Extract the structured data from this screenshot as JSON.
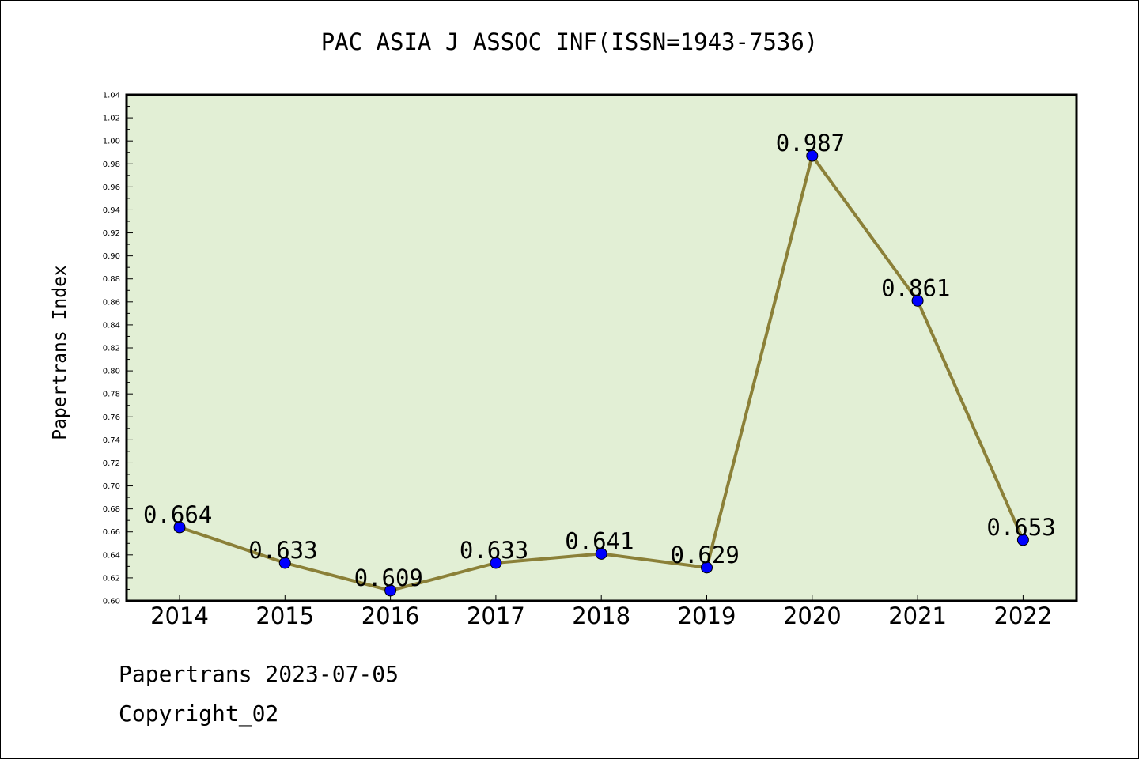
{
  "chart_data": {
    "type": "line",
    "title": "PAC ASIA J ASSOC INF(ISSN=1943-7536)",
    "ylabel": "Papertrans Index",
    "xlabel": "",
    "categories": [
      "2014",
      "2015",
      "2016",
      "2017",
      "2018",
      "2019",
      "2020",
      "2021",
      "2022"
    ],
    "series": [
      {
        "values": [
          0.664,
          0.633,
          0.609,
          0.633,
          0.641,
          0.629,
          0.987,
          0.861,
          0.653
        ]
      }
    ],
    "data_labels": [
      "0.664",
      "0.633",
      "0.609",
      "0.633",
      "0.641",
      "0.629",
      "0.987",
      "0.861",
      "0.653"
    ],
    "ylim": [
      0.6,
      1.04
    ],
    "yticks": [
      "0.60",
      "0.62",
      "0.64",
      "0.66",
      "0.68",
      "0.70",
      "0.72",
      "0.74",
      "0.76",
      "0.78",
      "0.80",
      "0.82",
      "0.84",
      "0.86",
      "0.88",
      "0.90",
      "0.92",
      "0.94",
      "0.96",
      "0.98",
      "1.00",
      "1.02",
      "1.04"
    ],
    "grid": false,
    "colors": {
      "plot_background": "#e2efd5",
      "line": "#8b8038",
      "marker": "#0000ff"
    }
  },
  "footer": {
    "line1": "Papertrans 2023-07-05",
    "line2": "Copyright_02"
  }
}
